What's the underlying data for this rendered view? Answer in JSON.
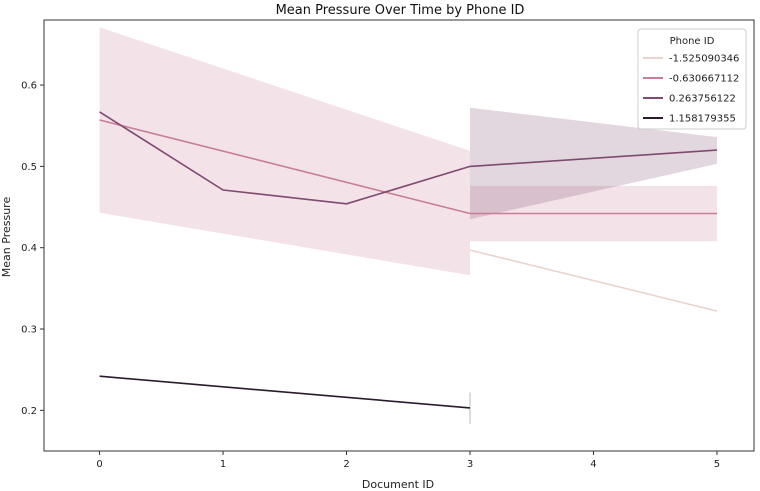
{
  "chart_data": {
    "type": "line",
    "title": "Mean Pressure Over Time by Phone ID",
    "xlabel": "Document ID",
    "ylabel": "Mean Pressure",
    "xlim": [
      -0.45,
      5.3
    ],
    "ylim": [
      0.15,
      0.68
    ],
    "x_ticks": [
      0,
      1,
      2,
      3,
      4,
      5
    ],
    "y_ticks": [
      0.2,
      0.3,
      0.4,
      0.5,
      0.6
    ],
    "grid": false,
    "legend": {
      "title": "Phone ID",
      "placement": "top-right"
    },
    "series": [
      {
        "name": "-1.525090346",
        "color": "#ead3cf",
        "x": [
          3,
          5
        ],
        "y": [
          0.397,
          0.322
        ],
        "band": {
          "x": [
            3,
            5
          ],
          "lower": [
            0.397,
            0.322
          ],
          "upper": [
            0.397,
            0.322
          ]
        }
      },
      {
        "name": "-0.630667112",
        "color": "#c97d96",
        "x": [
          0,
          3,
          5
        ],
        "y": [
          0.557,
          0.442,
          0.442
        ],
        "band": {
          "x": [
            0,
            3,
            3,
            5
          ],
          "lower": [
            0.443,
            0.366,
            0.408,
            0.408
          ],
          "upper": [
            0.671,
            0.519,
            0.476,
            0.476
          ]
        }
      },
      {
        "name": "0.263756122",
        "color": "#80496f",
        "x": [
          0,
          1,
          2,
          3,
          5
        ],
        "y": [
          0.567,
          0.471,
          0.454,
          0.5,
          0.52
        ],
        "band": {
          "x": [
            3,
            5
          ],
          "lower": [
            0.435,
            0.503
          ],
          "upper": [
            0.572,
            0.536
          ]
        }
      },
      {
        "name": "1.158179355",
        "color": "#2b1a2e",
        "x": [
          0,
          1,
          2,
          3
        ],
        "y": [
          0.242,
          0.229,
          0.216,
          0.203
        ],
        "band": {
          "x": [
            3
          ],
          "lower": [
            0.183
          ],
          "upper": [
            0.222
          ]
        }
      }
    ]
  }
}
